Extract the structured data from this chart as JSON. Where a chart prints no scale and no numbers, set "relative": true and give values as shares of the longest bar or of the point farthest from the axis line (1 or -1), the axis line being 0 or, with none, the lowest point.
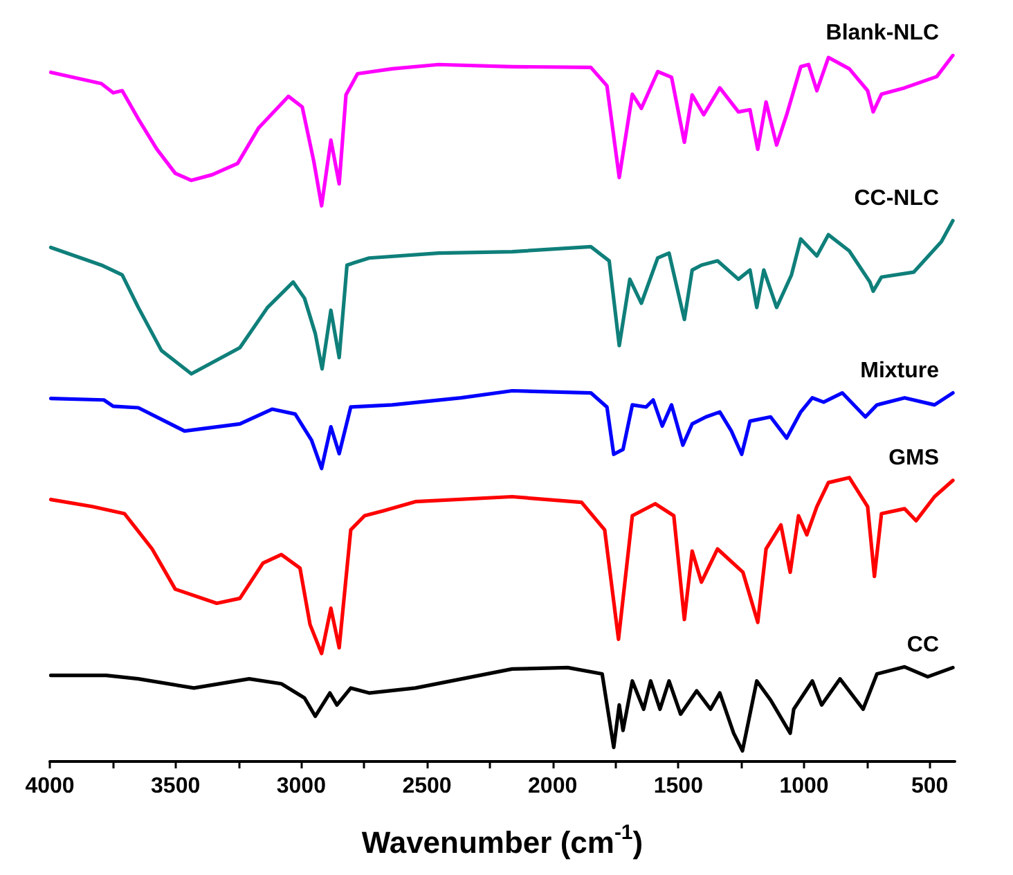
{
  "chart_data": {
    "type": "line",
    "relative": true,
    "xlabel": "Wavenumber (cm$^{-1}$)",
    "xlim": [
      4000,
      400
    ],
    "xticks": [
      4000,
      {
        "value": 3750,
        "label": null
      },
      3500,
      {
        "value": 3250,
        "label": null
      },
      3000,
      {
        "value": 2750,
        "label": null
      },
      2500,
      {
        "value": 2250,
        "label": null
      },
      2000,
      {
        "value": 1750,
        "label": null
      },
      1500,
      {
        "value": 1250,
        "label": null
      },
      1000,
      {
        "value": 750,
        "label": null
      },
      500
    ],
    "grid": false,
    "legend": false,
    "marker": "none",
    "line_style": "solid",
    "series": [
      {
        "name": "Blank-NLC",
        "color": "#ff00ff",
        "x": [
          3996,
          3795,
          3748,
          3712,
          3648,
          3574,
          3501,
          3437,
          3354,
          3253,
          3170,
          3051,
          2996,
          2950,
          2919,
          2882,
          2849,
          2822,
          2776,
          2638,
          2454,
          2161,
          1848,
          1784,
          1735,
          1683,
          1647,
          1582,
          1527,
          1476,
          1445,
          1399,
          1335,
          1261,
          1215,
          1184,
          1151,
          1109,
          1069,
          1013,
          982,
          949,
          903,
          820,
          747,
          725,
          692,
          600,
          472,
          408
        ],
        "values": [
          0.976,
          0.96,
          0.947,
          0.95,
          0.91,
          0.867,
          0.833,
          0.823,
          0.831,
          0.847,
          0.897,
          0.942,
          0.927,
          0.85,
          0.787,
          0.88,
          0.818,
          0.944,
          0.974,
          0.981,
          0.987,
          0.984,
          0.983,
          0.957,
          0.827,
          0.945,
          0.925,
          0.977,
          0.969,
          0.877,
          0.944,
          0.916,
          0.954,
          0.92,
          0.923,
          0.867,
          0.934,
          0.873,
          0.916,
          0.984,
          0.987,
          0.95,
          0.997,
          0.981,
          0.95,
          0.92,
          0.945,
          0.954,
          0.97,
          1
        ]
      },
      {
        "name": "CC-NLC",
        "color": "#0f7f7a",
        "x": [
          3996,
          3795,
          3712,
          3648,
          3556,
          3437,
          3244,
          3134,
          3032,
          2987,
          2944,
          2917,
          2882,
          2849,
          2818,
          2730,
          2454,
          2161,
          1848,
          1775,
          1735,
          1693,
          1647,
          1582,
          1537,
          1476,
          1445,
          1408,
          1344,
          1261,
          1215,
          1188,
          1160,
          1109,
          1050,
          1013,
          949,
          903,
          820,
          738,
          725,
          692,
          564,
          454,
          408
        ],
        "values": [
          0.728,
          0.703,
          0.689,
          0.643,
          0.582,
          0.549,
          0.586,
          0.643,
          0.679,
          0.656,
          0.606,
          0.556,
          0.639,
          0.572,
          0.703,
          0.713,
          0.72,
          0.722,
          0.729,
          0.709,
          0.589,
          0.683,
          0.649,
          0.713,
          0.72,
          0.626,
          0.696,
          0.703,
          0.709,
          0.683,
          0.696,
          0.643,
          0.696,
          0.643,
          0.689,
          0.74,
          0.716,
          0.746,
          0.723,
          0.679,
          0.666,
          0.686,
          0.693,
          0.736,
          0.766
        ]
      },
      {
        "name": "Mixture",
        "color": "#0000ff",
        "x": [
          3996,
          3785,
          3748,
          3648,
          3464,
          3244,
          3116,
          3024,
          2959,
          2919,
          2882,
          2849,
          2803,
          2638,
          2363,
          2161,
          1848,
          1784,
          1757,
          1720,
          1683,
          1628,
          1600,
          1564,
          1527,
          1482,
          1445,
          1390,
          1335,
          1289,
          1248,
          1215,
          1133,
          1069,
          1013,
          967,
          922,
          848,
          756,
          710,
          600,
          481,
          408
        ],
        "values": [
          0.514,
          0.512,
          0.503,
          0.501,
          0.468,
          0.478,
          0.499,
          0.492,
          0.455,
          0.415,
          0.474,
          0.436,
          0.502,
          0.505,
          0.515,
          0.525,
          0.522,
          0.502,
          0.435,
          0.442,
          0.505,
          0.502,
          0.512,
          0.475,
          0.505,
          0.448,
          0.478,
          0.488,
          0.495,
          0.468,
          0.435,
          0.482,
          0.488,
          0.458,
          0.495,
          0.515,
          0.509,
          0.522,
          0.488,
          0.505,
          0.515,
          0.505,
          0.522
        ]
      },
      {
        "name": "GMS",
        "color": "#ff0000",
        "x": [
          3996,
          3831,
          3703,
          3593,
          3501,
          3336,
          3244,
          3152,
          3079,
          3005,
          2965,
          2919,
          2882,
          2849,
          2803,
          2748,
          2674,
          2546,
          2161,
          1885,
          1793,
          1738,
          1683,
          1592,
          1518,
          1476,
          1445,
          1408,
          1344,
          1243,
          1184,
          1151,
          1092,
          1055,
          1022,
          989,
          949,
          903,
          820,
          747,
          720,
          692,
          600,
          554,
          481,
          408
        ],
        "values": [
          0.371,
          0.361,
          0.351,
          0.301,
          0.244,
          0.224,
          0.231,
          0.281,
          0.293,
          0.274,
          0.194,
          0.153,
          0.217,
          0.161,
          0.328,
          0.348,
          0.355,
          0.368,
          0.375,
          0.367,
          0.328,
          0.173,
          0.348,
          0.365,
          0.348,
          0.201,
          0.298,
          0.254,
          0.301,
          0.268,
          0.197,
          0.301,
          0.335,
          0.268,
          0.348,
          0.321,
          0.361,
          0.395,
          0.402,
          0.361,
          0.262,
          0.351,
          0.358,
          0.341,
          0.375,
          0.398
        ]
      },
      {
        "name": "CC",
        "color": "#000000",
        "x": [
          3996,
          3776,
          3648,
          3427,
          3207,
          3079,
          2987,
          2944,
          2886,
          2858,
          2803,
          2730,
          2546,
          2161,
          1940,
          1803,
          1757,
          1735,
          1720,
          1683,
          1638,
          1610,
          1573,
          1537,
          1491,
          1427,
          1372,
          1335,
          1280,
          1245,
          1188,
          1133,
          1055,
          1041,
          967,
          930,
          857,
          765,
          710,
          600,
          508,
          408
        ],
        "values": [
          0.122,
          0.122,
          0.117,
          0.104,
          0.117,
          0.11,
          0.09,
          0.064,
          0.097,
          0.08,
          0.104,
          0.097,
          0.104,
          0.131,
          0.133,
          0.124,
          0.02,
          0.08,
          0.044,
          0.114,
          0.074,
          0.114,
          0.074,
          0.114,
          0.067,
          0.1,
          0.074,
          0.097,
          0.04,
          0.015,
          0.114,
          0.087,
          0.04,
          0.074,
          0.114,
          0.08,
          0.117,
          0.074,
          0.124,
          0.134,
          0.12,
          0.133
        ]
      }
    ]
  }
}
